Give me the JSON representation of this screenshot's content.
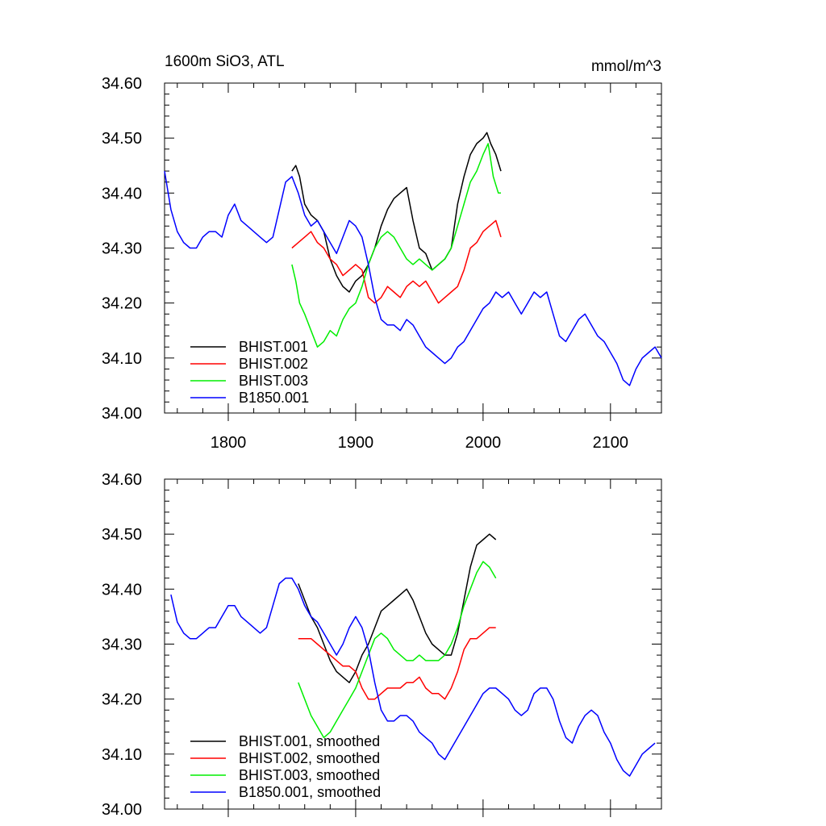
{
  "figure": {
    "header_left": "1600m SiO3, ATL",
    "header_right": "mmol/m^3"
  },
  "chart_data": [
    {
      "type": "line",
      "title": "1600m SiO3, ATL",
      "units": "mmol/m^3",
      "xlim": [
        1750,
        2140
      ],
      "ylim": [
        34.0,
        34.6
      ],
      "xticks": [
        1800,
        1900,
        2000,
        2100
      ],
      "xtick_labels": [
        "1800",
        "1900",
        "2000",
        "2100"
      ],
      "yticks": [
        34.0,
        34.1,
        34.2,
        34.3,
        34.4,
        34.5,
        34.6
      ],
      "ytick_labels": [
        "34.00",
        "34.10",
        "34.20",
        "34.30",
        "34.40",
        "34.50",
        "34.60"
      ],
      "legend_position": "bottom-left",
      "series": [
        {
          "name": "BHIST.001",
          "color": "#000000",
          "x": [
            1850,
            1853,
            1856,
            1860,
            1865,
            1870,
            1875,
            1880,
            1885,
            1890,
            1895,
            1900,
            1905,
            1910,
            1915,
            1920,
            1925,
            1930,
            1935,
            1940,
            1945,
            1950,
            1955,
            1960,
            1965,
            1970,
            1975,
            1980,
            1985,
            1990,
            1995,
            2000,
            2003,
            2006,
            2010,
            2014
          ],
          "y": [
            34.44,
            34.45,
            34.43,
            34.38,
            34.36,
            34.35,
            34.33,
            34.28,
            34.25,
            34.23,
            34.22,
            34.24,
            34.25,
            34.27,
            34.3,
            34.34,
            34.37,
            34.39,
            34.4,
            34.41,
            34.35,
            34.3,
            34.29,
            34.26,
            34.27,
            34.28,
            34.3,
            34.38,
            34.43,
            34.47,
            34.49,
            34.5,
            34.51,
            34.49,
            34.47,
            34.44
          ]
        },
        {
          "name": "BHIST.002",
          "color": "#ff0000",
          "x": [
            1850,
            1855,
            1860,
            1865,
            1870,
            1875,
            1880,
            1885,
            1890,
            1895,
            1900,
            1905,
            1910,
            1915,
            1920,
            1925,
            1930,
            1935,
            1940,
            1945,
            1950,
            1955,
            1960,
            1965,
            1970,
            1975,
            1980,
            1985,
            1990,
            1995,
            2000,
            2005,
            2010,
            2014
          ],
          "y": [
            34.3,
            34.31,
            34.32,
            34.33,
            34.31,
            34.3,
            34.28,
            34.27,
            34.25,
            34.26,
            34.27,
            34.26,
            34.21,
            34.2,
            34.21,
            34.23,
            34.22,
            34.21,
            34.23,
            34.24,
            34.23,
            34.24,
            34.22,
            34.2,
            34.21,
            34.22,
            34.23,
            34.26,
            34.3,
            34.31,
            34.33,
            34.34,
            34.35,
            34.32
          ]
        },
        {
          "name": "BHIST.003",
          "color": "#00ee00",
          "x": [
            1850,
            1853,
            1856,
            1860,
            1865,
            1870,
            1875,
            1880,
            1885,
            1890,
            1895,
            1900,
            1905,
            1910,
            1915,
            1920,
            1925,
            1930,
            1935,
            1940,
            1945,
            1950,
            1955,
            1960,
            1965,
            1970,
            1975,
            1980,
            1985,
            1990,
            1995,
            2000,
            2004,
            2008,
            2012,
            2014
          ],
          "y": [
            34.27,
            34.24,
            34.2,
            34.18,
            34.15,
            34.12,
            34.13,
            34.15,
            34.14,
            34.17,
            34.19,
            34.2,
            34.23,
            34.27,
            34.3,
            34.32,
            34.33,
            34.32,
            34.3,
            34.28,
            34.27,
            34.28,
            34.27,
            34.26,
            34.27,
            34.28,
            34.3,
            34.34,
            34.38,
            34.42,
            34.44,
            34.47,
            34.49,
            34.43,
            34.4,
            34.4
          ]
        },
        {
          "name": "B1850.001",
          "color": "#0000ff",
          "x": [
            1750,
            1755,
            1760,
            1765,
            1770,
            1775,
            1780,
            1785,
            1790,
            1795,
            1800,
            1805,
            1810,
            1815,
            1820,
            1825,
            1830,
            1835,
            1840,
            1845,
            1850,
            1855,
            1860,
            1865,
            1870,
            1875,
            1880,
            1885,
            1890,
            1895,
            1900,
            1905,
            1910,
            1915,
            1920,
            1925,
            1930,
            1935,
            1940,
            1945,
            1950,
            1955,
            1960,
            1965,
            1970,
            1975,
            1980,
            1985,
            1990,
            1995,
            2000,
            2005,
            2010,
            2015,
            2020,
            2025,
            2030,
            2035,
            2040,
            2045,
            2050,
            2055,
            2060,
            2065,
            2070,
            2075,
            2080,
            2085,
            2090,
            2095,
            2100,
            2105,
            2110,
            2115,
            2120,
            2125,
            2130,
            2135,
            2140
          ],
          "y": [
            34.44,
            34.37,
            34.33,
            34.31,
            34.3,
            34.3,
            34.32,
            34.33,
            34.33,
            34.32,
            34.36,
            34.38,
            34.35,
            34.34,
            34.33,
            34.32,
            34.31,
            34.32,
            34.37,
            34.42,
            34.43,
            34.4,
            34.36,
            34.34,
            34.35,
            34.33,
            34.31,
            34.29,
            34.32,
            34.35,
            34.34,
            34.32,
            34.27,
            34.21,
            34.17,
            34.16,
            34.16,
            34.15,
            34.17,
            34.16,
            34.14,
            34.12,
            34.11,
            34.1,
            34.09,
            34.1,
            34.12,
            34.13,
            34.15,
            34.17,
            34.19,
            34.2,
            34.22,
            34.21,
            34.22,
            34.2,
            34.18,
            34.2,
            34.22,
            34.21,
            34.22,
            34.18,
            34.14,
            34.13,
            34.15,
            34.17,
            34.18,
            34.16,
            34.14,
            34.13,
            34.11,
            34.09,
            34.06,
            34.05,
            34.08,
            34.1,
            34.11,
            34.12,
            34.1
          ]
        }
      ]
    },
    {
      "type": "line",
      "title": "",
      "xlim": [
        1750,
        2140
      ],
      "ylim": [
        34.0,
        34.6
      ],
      "xticks": [
        1800,
        1900,
        2000,
        2100
      ],
      "xtick_labels": [],
      "yticks": [
        34.0,
        34.1,
        34.2,
        34.3,
        34.4,
        34.5,
        34.6
      ],
      "ytick_labels": [
        "34.00",
        "34.10",
        "34.20",
        "34.30",
        "34.40",
        "34.50",
        "34.60"
      ],
      "legend_position": "bottom-left",
      "series": [
        {
          "name": "BHIST.001, smoothed",
          "color": "#000000",
          "x": [
            1855,
            1860,
            1865,
            1870,
            1875,
            1880,
            1885,
            1890,
            1895,
            1900,
            1905,
            1910,
            1915,
            1920,
            1925,
            1930,
            1935,
            1940,
            1945,
            1950,
            1955,
            1960,
            1965,
            1970,
            1975,
            1980,
            1985,
            1990,
            1995,
            2000,
            2005,
            2010
          ],
          "y": [
            34.41,
            34.38,
            34.35,
            34.33,
            34.3,
            34.27,
            34.25,
            34.24,
            34.23,
            34.25,
            34.28,
            34.3,
            34.33,
            34.36,
            34.37,
            34.38,
            34.39,
            34.4,
            34.38,
            34.35,
            34.32,
            34.3,
            34.29,
            34.28,
            34.28,
            34.32,
            34.38,
            34.44,
            34.48,
            34.49,
            34.5,
            34.49
          ]
        },
        {
          "name": "BHIST.002, smoothed",
          "color": "#ff0000",
          "x": [
            1855,
            1860,
            1865,
            1870,
            1875,
            1880,
            1885,
            1890,
            1895,
            1900,
            1905,
            1910,
            1915,
            1920,
            1925,
            1930,
            1935,
            1940,
            1945,
            1950,
            1955,
            1960,
            1965,
            1970,
            1975,
            1980,
            1985,
            1990,
            1995,
            2000,
            2005,
            2010
          ],
          "y": [
            34.31,
            34.31,
            34.31,
            34.3,
            34.29,
            34.28,
            34.27,
            34.26,
            34.26,
            34.25,
            34.22,
            34.2,
            34.2,
            34.21,
            34.22,
            34.22,
            34.22,
            34.23,
            34.23,
            34.24,
            34.22,
            34.21,
            34.21,
            34.2,
            34.22,
            34.25,
            34.29,
            34.31,
            34.31,
            34.32,
            34.33,
            34.33
          ]
        },
        {
          "name": "BHIST.003, smoothed",
          "color": "#00ee00",
          "x": [
            1855,
            1860,
            1865,
            1870,
            1875,
            1880,
            1885,
            1890,
            1895,
            1900,
            1905,
            1910,
            1915,
            1920,
            1925,
            1930,
            1935,
            1940,
            1945,
            1950,
            1955,
            1960,
            1965,
            1970,
            1975,
            1980,
            1985,
            1990,
            1995,
            2000,
            2005,
            2010
          ],
          "y": [
            34.23,
            34.2,
            34.17,
            34.15,
            34.13,
            34.14,
            34.16,
            34.18,
            34.2,
            34.22,
            34.25,
            34.28,
            34.31,
            34.32,
            34.31,
            34.29,
            34.28,
            34.27,
            34.27,
            34.28,
            34.27,
            34.27,
            34.27,
            34.28,
            34.3,
            34.33,
            34.37,
            34.4,
            34.43,
            34.45,
            34.44,
            34.42
          ]
        },
        {
          "name": "B1850.001, smoothed",
          "color": "#0000ff",
          "x": [
            1755,
            1760,
            1765,
            1770,
            1775,
            1780,
            1785,
            1790,
            1795,
            1800,
            1805,
            1810,
            1815,
            1820,
            1825,
            1830,
            1835,
            1840,
            1845,
            1850,
            1855,
            1860,
            1865,
            1870,
            1875,
            1880,
            1885,
            1890,
            1895,
            1900,
            1905,
            1910,
            1915,
            1920,
            1925,
            1930,
            1935,
            1940,
            1945,
            1950,
            1955,
            1960,
            1965,
            1970,
            1975,
            1980,
            1985,
            1990,
            1995,
            2000,
            2005,
            2010,
            2015,
            2020,
            2025,
            2030,
            2035,
            2040,
            2045,
            2050,
            2055,
            2060,
            2065,
            2070,
            2075,
            2080,
            2085,
            2090,
            2095,
            2100,
            2105,
            2110,
            2115,
            2120,
            2125,
            2130,
            2135
          ],
          "y": [
            34.39,
            34.34,
            34.32,
            34.31,
            34.31,
            34.32,
            34.33,
            34.33,
            34.35,
            34.37,
            34.37,
            34.35,
            34.34,
            34.33,
            34.32,
            34.33,
            34.37,
            34.41,
            34.42,
            34.42,
            34.4,
            34.37,
            34.35,
            34.34,
            34.32,
            34.3,
            34.28,
            34.3,
            34.33,
            34.35,
            34.33,
            34.29,
            34.23,
            34.18,
            34.16,
            34.16,
            34.17,
            34.17,
            34.16,
            34.14,
            34.13,
            34.12,
            34.1,
            34.09,
            34.11,
            34.13,
            34.15,
            34.17,
            34.19,
            34.21,
            34.22,
            34.22,
            34.21,
            34.2,
            34.18,
            34.17,
            34.18,
            34.21,
            34.22,
            34.22,
            34.2,
            34.16,
            34.13,
            34.12,
            34.15,
            34.17,
            34.18,
            34.17,
            34.14,
            34.12,
            34.09,
            34.07,
            34.06,
            34.08,
            34.1,
            34.11,
            34.12
          ]
        }
      ]
    }
  ]
}
